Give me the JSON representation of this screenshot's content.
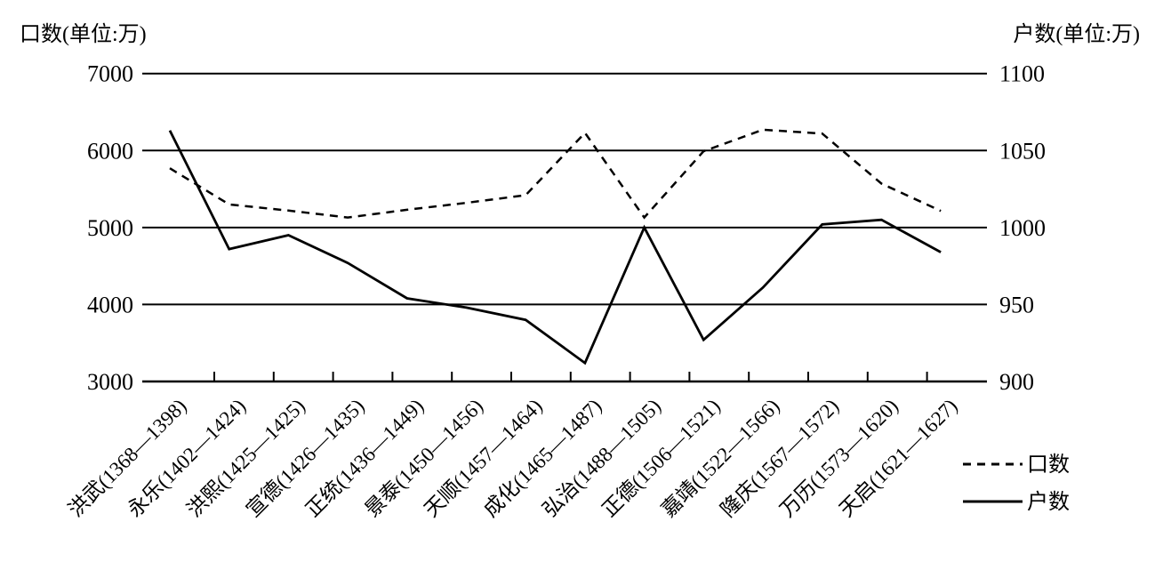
{
  "chart_data": {
    "type": "line",
    "title": "",
    "ylabel_left": "口数(单位:万)",
    "ylabel_right": "户数(单位:万)",
    "ylim_left": [
      3000,
      7000
    ],
    "ylim_right": [
      900,
      1100
    ],
    "yticks_left": [
      "7000",
      "6000",
      "5000",
      "4000",
      "3000"
    ],
    "yticks_right": [
      "1100",
      "1050",
      "1000",
      "950",
      "900"
    ],
    "grid": true,
    "legend_position": "bottom-right",
    "categories": [
      "洪武(1368—1398)",
      "永乐(1402—1424)",
      "洪熙(1425—1425)",
      "宣德(1426—1435)",
      "正统(1436—1449)",
      "景泰(1450—1456)",
      "天顺(1457—1464)",
      "成化(1465—1487)",
      "弘治(1488—1505)",
      "正德(1506—1521)",
      "嘉靖(1522—1566)",
      "隆庆(1567—1572)",
      "万历(1573—1620)",
      "天启(1621—1627)"
    ],
    "series": [
      {
        "name": "口数",
        "axis": "left",
        "style": "dashed",
        "values": [
          5770,
          5300,
          5220,
          5130,
          5230,
          5320,
          5420,
          6230,
          5130,
          5990,
          6270,
          6220,
          5570,
          5215
        ]
      },
      {
        "name": "户数",
        "axis": "right",
        "style": "solid",
        "values": [
          1063,
          986,
          995,
          977,
          954,
          948,
          940,
          912,
          1000,
          927,
          961,
          1002,
          1005,
          984
        ]
      }
    ]
  }
}
